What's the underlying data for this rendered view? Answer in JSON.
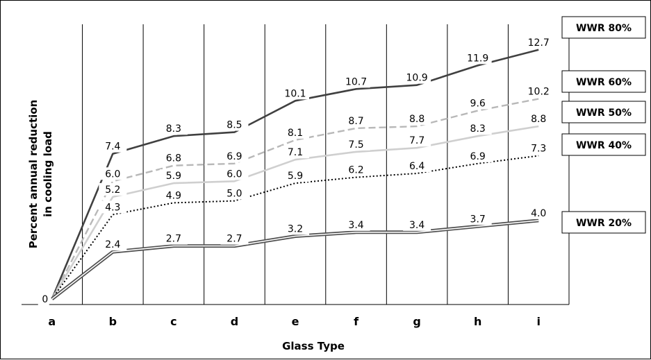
{
  "chart_data": {
    "type": "line",
    "xlabel": "Glass Type",
    "ylabel_line1": "Percent annual reduction",
    "ylabel_line2": "in cooling load",
    "categories": [
      "a",
      "b",
      "c",
      "d",
      "e",
      "f",
      "g",
      "h",
      "i"
    ],
    "ylim": [
      0,
      14
    ],
    "grid": "vertical",
    "series": [
      {
        "name": "WWR 80%",
        "values": [
          0,
          7.4,
          8.3,
          8.5,
          10.1,
          10.7,
          10.9,
          11.9,
          12.7
        ],
        "labels": [
          "0",
          "7.4",
          "8.3",
          "8.5",
          "10.1",
          "10.7",
          "10.9",
          "11.9",
          "12.7"
        ],
        "style": "solid",
        "color": "#404040"
      },
      {
        "name": "WWR 60%",
        "values": [
          0,
          6.0,
          6.8,
          6.9,
          8.1,
          8.7,
          8.8,
          9.6,
          10.2
        ],
        "labels": [
          "",
          "6.0",
          "6.8",
          "6.9",
          "8.1",
          "8.7",
          "8.8",
          "9.6",
          "10.2"
        ],
        "style": "dashed",
        "color": "#b8b8b8"
      },
      {
        "name": "WWR 50%",
        "values": [
          0,
          5.2,
          5.9,
          6.0,
          7.1,
          7.5,
          7.7,
          8.3,
          8.8
        ],
        "labels": [
          "",
          "5.2",
          "5.9",
          "6.0",
          "7.1",
          "7.5",
          "7.7",
          "8.3",
          "8.8"
        ],
        "style": "solid-light",
        "color": "#cfcfcf"
      },
      {
        "name": "WWR 40%",
        "values": [
          0,
          4.3,
          4.9,
          5.0,
          5.9,
          6.2,
          6.4,
          6.9,
          7.3
        ],
        "labels": [
          "",
          "4.3",
          "4.9",
          "5.0",
          "5.9",
          "6.2",
          "6.4",
          "6.9",
          "7.3"
        ],
        "style": "dotted",
        "color": "#000000"
      },
      {
        "name": "WWR 20%",
        "values": [
          0,
          2.4,
          2.7,
          2.7,
          3.2,
          3.4,
          3.4,
          3.7,
          4.0
        ],
        "labels": [
          "",
          "2.4",
          "2.7",
          "2.7",
          "3.2",
          "3.4",
          "3.4",
          "3.7",
          "4.0"
        ],
        "style": "double",
        "color": "#505050"
      }
    ]
  }
}
